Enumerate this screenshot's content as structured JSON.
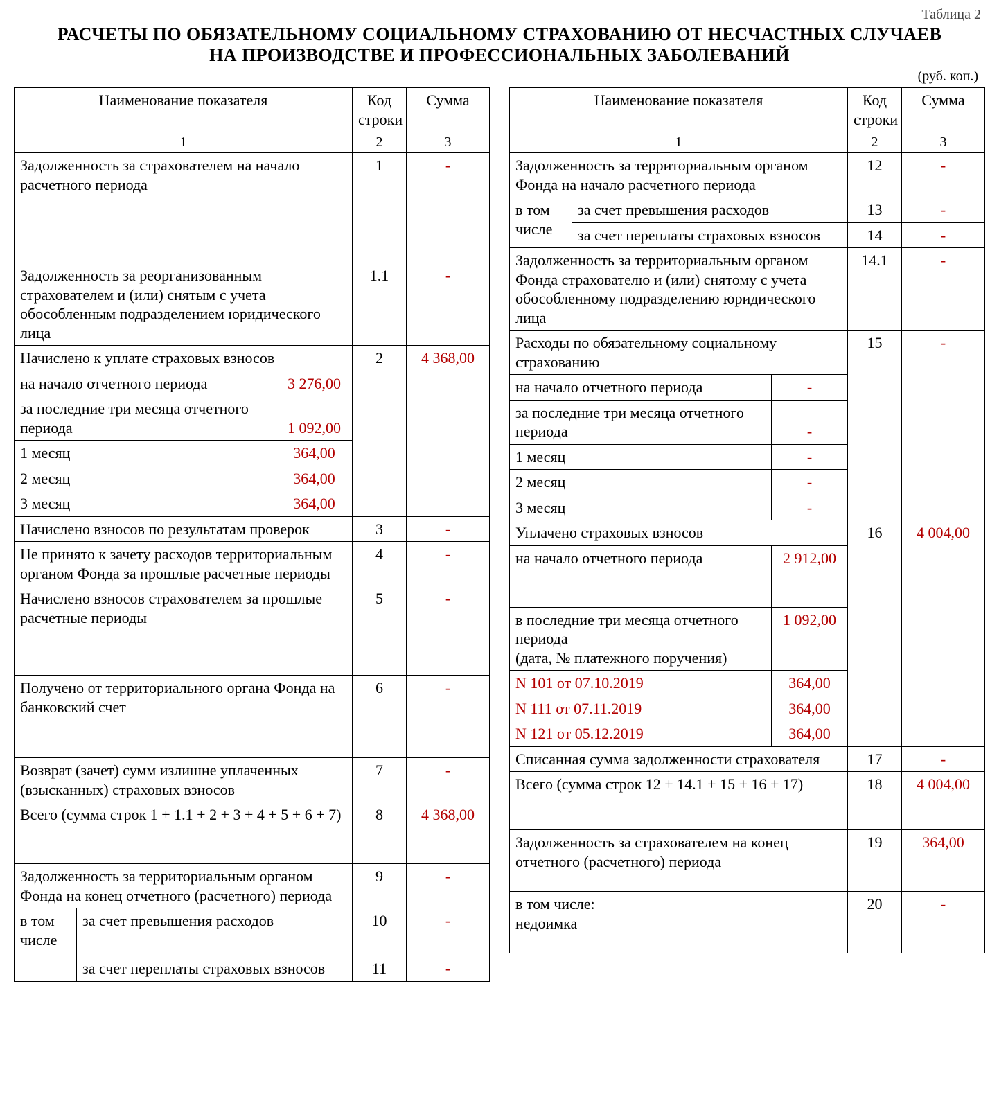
{
  "tableNumber": "Таблица 2",
  "titleLine1": "РАСЧЕТЫ ПО ОБЯЗАТЕЛЬНОМУ СОЦИАЛЬНОМУ СТРАХОВАНИЮ ОТ НЕСЧАСТНЫХ СЛУЧАЕВ",
  "titleLine2": "НА ПРОИЗВОДСТВЕ И ПРОФЕССИОНАЛЬНЫХ ЗАБОЛЕВАНИЙ",
  "unit": "(руб. коп.)",
  "headers": {
    "name": "Наименование показателя",
    "code": "Код строки",
    "sum": "Сумма",
    "h1": "1",
    "h2": "2",
    "h3": "3"
  },
  "left": {
    "r1": {
      "name": "Задолженность за страхователем на начало расчетного периода",
      "code": "1",
      "sum": "-"
    },
    "r1_1": {
      "name": "Задолженность за реорганизованным страхователем и (или) снятым с учета обособленным подразделением юридического лица",
      "code": "1.1",
      "sum": "-"
    },
    "r2": {
      "name": "Начислено к уплате страховых взносов",
      "code": "2",
      "sum": "4 368,00",
      "sub": {
        "begin": {
          "label": "на начало отчетного периода",
          "val": "3 276,00"
        },
        "last3": {
          "label": "за последние три месяца отчетного периода",
          "val": "1 092,00"
        },
        "m1": {
          "label": "1 месяц",
          "val": "364,00"
        },
        "m2": {
          "label": "2 месяц",
          "val": "364,00"
        },
        "m3": {
          "label": "3 месяц",
          "val": "364,00"
        }
      }
    },
    "r3": {
      "name": "Начислено взносов по результатам проверок",
      "code": "3",
      "sum": "-"
    },
    "r4": {
      "name": "Не принято к зачету расходов территориальным органом Фонда за прошлые расчетные периоды",
      "code": "4",
      "sum": "-"
    },
    "r5": {
      "name": "Начислено взносов страхователем за прошлые расчетные периоды",
      "code": "5",
      "sum": "-"
    },
    "r6": {
      "name": "Получено от территориального органа Фонда на банковский счет",
      "code": "6",
      "sum": "-"
    },
    "r7": {
      "name": "Возврат (зачет) сумм излишне уплаченных (взысканных) страховых взносов",
      "code": "7",
      "sum": "-"
    },
    "r8": {
      "name": "Всего (сумма строк 1 + 1.1 + 2 + 3 + 4 + 5 + 6 + 7)",
      "code": "8",
      "sum": "4 368,00"
    },
    "r9": {
      "name": "Задолженность за территориальным органом Фонда на конец отчетного (расчетного) периода",
      "code": "9",
      "sum": "-"
    },
    "r10": {
      "intro": "в том числе",
      "name": "за счет превышения расходов",
      "code": "10",
      "sum": "-"
    },
    "r11": {
      "name": "за счет переплаты страховых взносов",
      "code": "11",
      "sum": "-"
    }
  },
  "right": {
    "r12": {
      "name": "Задолженность за территориальным органом Фонда на начало расчетного периода",
      "code": "12",
      "sum": "-"
    },
    "r13": {
      "intro": "в том числе",
      "name": "за счет превышения расходов",
      "code": "13",
      "sum": "-"
    },
    "r14": {
      "name": "за счет переплаты страховых взносов",
      "code": "14",
      "sum": "-"
    },
    "r14_1": {
      "name": "Задолженность за территориальным органом Фонда страхователю и (или) снятому с учета обособленному подразделению юридического лица",
      "code": "14.1",
      "sum": "-"
    },
    "r15": {
      "name": "Расходы по обязательному социальному страхованию",
      "code": "15",
      "sum": "-",
      "sub": {
        "begin": {
          "label": "на начало отчетного периода",
          "val": "-"
        },
        "last3": {
          "label": "за последние три месяца отчетного периода",
          "val": "-"
        },
        "m1": {
          "label": "1 месяц",
          "val": "-"
        },
        "m2": {
          "label": "2 месяц",
          "val": "-"
        },
        "m3": {
          "label": "3 месяц",
          "val": "-"
        }
      }
    },
    "r16": {
      "name": "Уплачено страховых взносов",
      "code": "16",
      "sum": "4 004,00",
      "sub": {
        "begin": {
          "label": "на начало отчетного периода",
          "val": "2 912,00"
        },
        "last3": {
          "label": "в последние три месяца отчетного периода\n(дата, № платежного поручения)",
          "val": "1 092,00"
        },
        "p1": {
          "label": "N 101 от 07.10.2019",
          "val": "364,00"
        },
        "p2": {
          "label": "N 111 от 07.11.2019",
          "val": "364,00"
        },
        "p3": {
          "label": "N 121 от 05.12.2019",
          "val": "364,00"
        }
      }
    },
    "r17": {
      "name": "Списанная сумма задолженности страхователя",
      "code": "17",
      "sum": "-"
    },
    "r18": {
      "name": "Всего (сумма строк 12 + 14.1 + 15 + 16 + 17)",
      "code": "18",
      "sum": "4 004,00"
    },
    "r19": {
      "name": "Задолженность за страхователем на конец отчетного (расчетного) периода",
      "code": "19",
      "sum": "364,00"
    },
    "r20": {
      "name": "в том числе:\nнедоимка",
      "code": "20",
      "sum": "-"
    }
  },
  "style": {
    "value_color": "#b30000",
    "text_color": "#000000",
    "border_color": "#000000",
    "font_family": "Times New Roman",
    "title_fontsize": 26,
    "cell_fontsize": 22
  }
}
